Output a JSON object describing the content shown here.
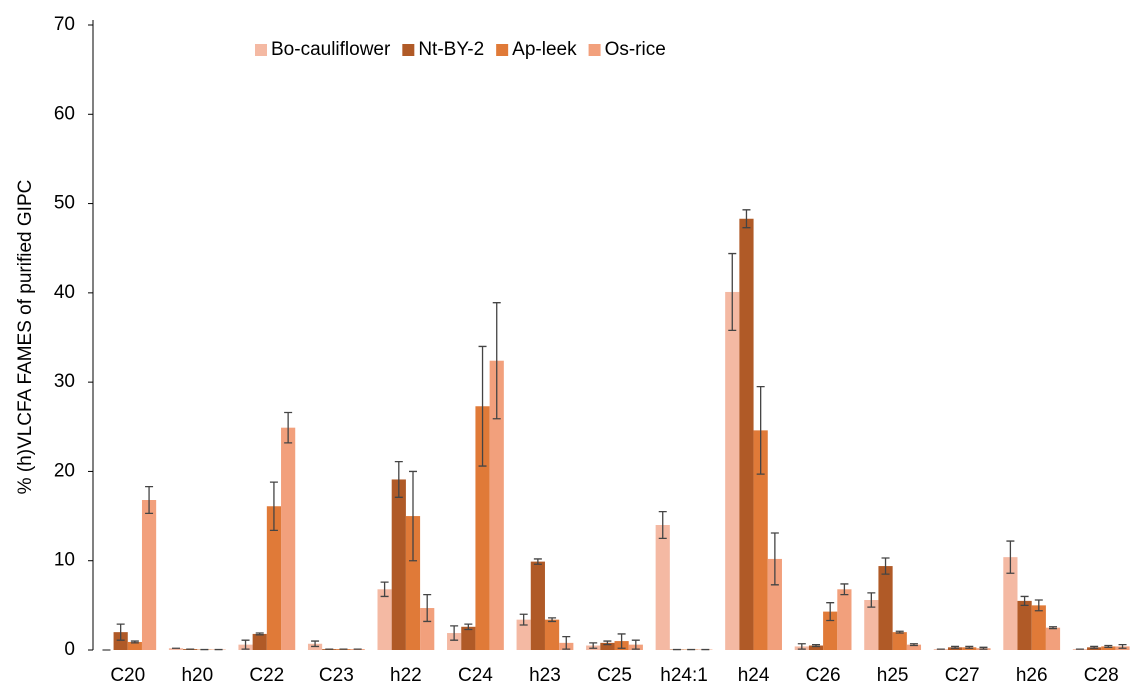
{
  "chart_data": {
    "type": "bar",
    "y_label": "% (h)VLCFA FAMES of purified GIPC",
    "categories": [
      "C20",
      "h20",
      "C22",
      "C23",
      "h22",
      "C24",
      "h23",
      "C25",
      "h24:1",
      "h24",
      "C26",
      "h25",
      "C27",
      "h26",
      "C28"
    ],
    "series": [
      {
        "name": "Bo-cauliflower",
        "color": "#f4b9a3",
        "values": [
          0,
          0.2,
          0.6,
          0.7,
          6.8,
          1.9,
          3.4,
          0.5,
          14,
          40.1,
          0.4,
          5.6,
          0.1,
          10.4,
          0.1
        ],
        "errors": [
          0,
          0,
          0.5,
          0.3,
          0.8,
          0.8,
          0.6,
          0.3,
          1.5,
          4.3,
          0.3,
          0.8,
          0,
          1.8,
          0
        ]
      },
      {
        "name": "Nt-BY-2",
        "color": "#b05a27",
        "values": [
          2,
          0.1,
          1.8,
          0.1,
          19.1,
          2.6,
          9.9,
          0.8,
          0.05,
          48.3,
          0.5,
          9.4,
          0.3,
          5.5,
          0.3
        ],
        "errors": [
          0.9,
          0,
          0.1,
          0,
          2,
          0.3,
          0.3,
          0.2,
          0,
          1,
          0.1,
          0.9,
          0.1,
          0.5,
          0.1
        ]
      },
      {
        "name": "Ap-leek",
        "color": "#e07a38",
        "values": [
          0.9,
          0.05,
          16.1,
          0.1,
          15,
          27.3,
          3.4,
          1,
          0.05,
          24.6,
          4.3,
          2,
          0.3,
          5,
          0.4
        ],
        "errors": [
          0.1,
          0,
          2.7,
          0,
          5,
          6.7,
          0.2,
          0.8,
          0,
          4.9,
          1,
          0.1,
          0.1,
          0.6,
          0.1
        ]
      },
      {
        "name": "Os-rice",
        "color": "#f2a07c",
        "values": [
          16.8,
          0.05,
          24.9,
          0.1,
          4.7,
          32.4,
          0.8,
          0.6,
          0.05,
          10.2,
          6.8,
          0.6,
          0.2,
          2.5,
          0.4
        ],
        "errors": [
          1.5,
          0,
          1.7,
          0,
          1.5,
          6.5,
          0.7,
          0.5,
          0,
          2.9,
          0.6,
          0.1,
          0.1,
          0.1,
          0.2
        ]
      }
    ],
    "ylim": [
      0,
      70
    ],
    "yticks": [
      0,
      10,
      20,
      30,
      40,
      50,
      60,
      70
    ],
    "grid": false,
    "legend": "top"
  }
}
